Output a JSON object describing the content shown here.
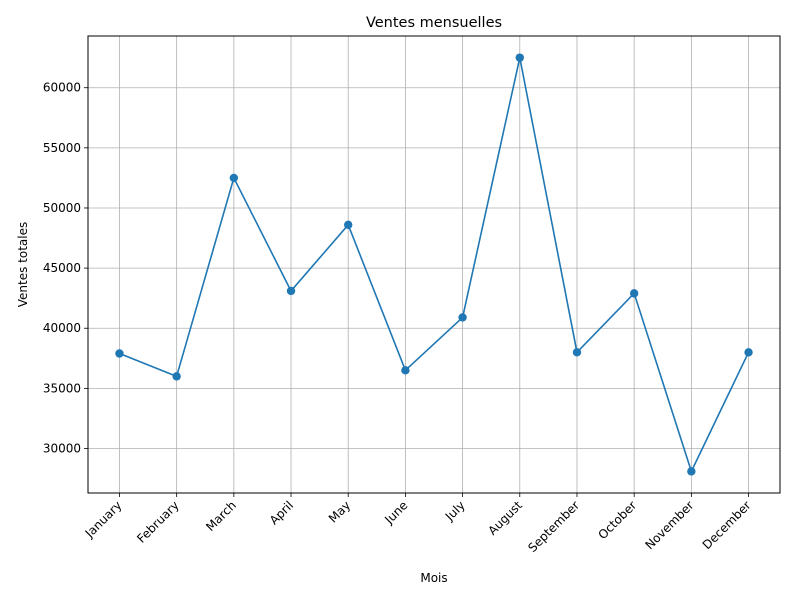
{
  "chart_data": {
    "type": "line",
    "title": "Ventes mensuelles",
    "xlabel": "Mois",
    "ylabel": "Ventes totales",
    "categories": [
      "January",
      "February",
      "March",
      "April",
      "May",
      "June",
      "July",
      "August",
      "September",
      "October",
      "November",
      "December"
    ],
    "series": [
      {
        "values": [
          37900,
          36000,
          52500,
          43100,
          48600,
          36500,
          40900,
          62500,
          38000,
          42900,
          28100,
          38000
        ],
        "color": "#1f77b4",
        "marker": "circle"
      }
    ],
    "ylim": [
      26300,
      64300
    ],
    "yticks": [
      30000,
      35000,
      40000,
      45000,
      50000,
      55000,
      60000
    ],
    "grid": true,
    "legend": "none"
  }
}
